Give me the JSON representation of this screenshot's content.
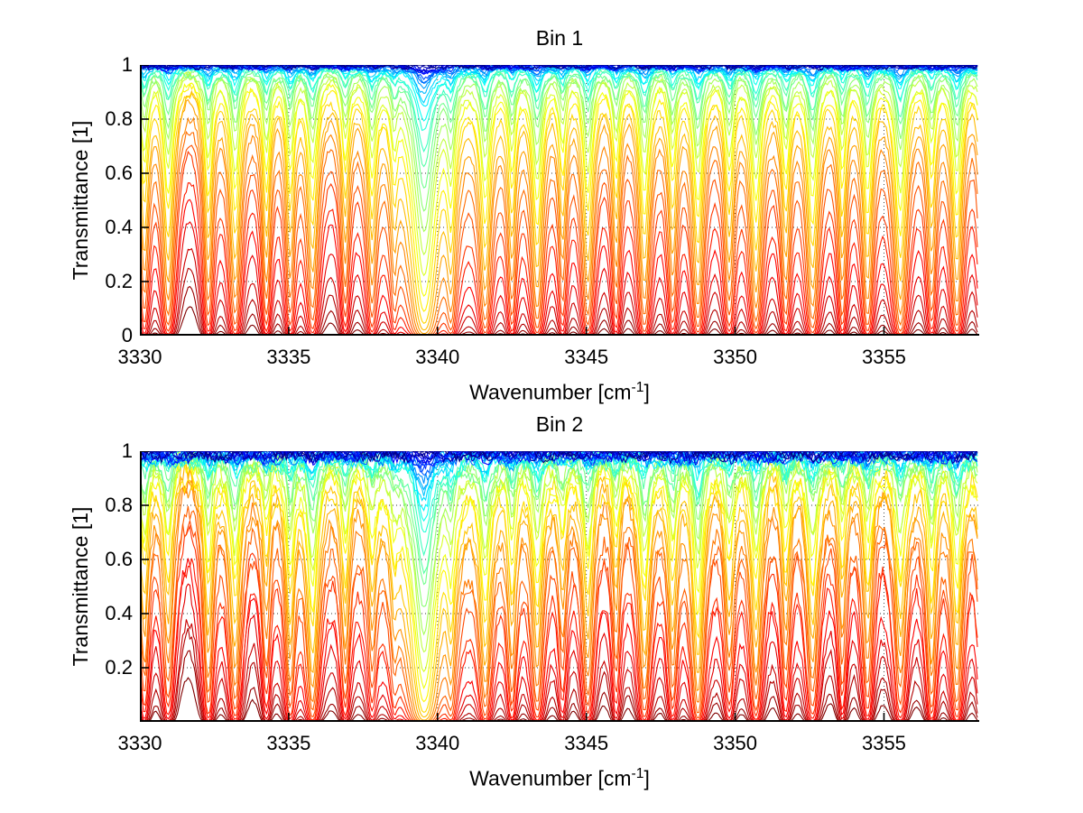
{
  "figure": {
    "background": "#ffffff",
    "colors": {
      "axis": "#000000",
      "grid": "#333333",
      "text": "#000000"
    }
  },
  "chart_data": [
    {
      "type": "line",
      "title": "Bin 1",
      "xlabel": {
        "prefix": "Wavenumber [cm",
        "sup": "-1",
        "suffix": "]"
      },
      "ylabel": "Transmittance [1]",
      "xlim": [
        3330,
        3358.2
      ],
      "ylim": [
        0,
        1
      ],
      "x_ticks": [
        3330,
        3335,
        3340,
        3345,
        3350,
        3355
      ],
      "x_tick_labels": [
        "3330",
        "3335",
        "3340",
        "3345",
        "3350",
        "3355"
      ],
      "y_ticks": [
        0,
        0.2,
        0.4,
        0.6,
        0.8,
        1
      ],
      "y_tick_labels": [
        "0",
        "0.2",
        "0.4",
        "0.6",
        "0.8",
        "1"
      ],
      "grid": "dotted",
      "legend": "none",
      "series_model": {
        "kind": "beer_lambert_transmittance_family",
        "n_curves": 40,
        "absorbance_scale_min": 0.001,
        "absorbance_scale_max": 9,
        "spacing": "log",
        "colormap": "jet",
        "top_curve_color": "#0000a0",
        "deepest_curve_color": "#800000",
        "noise": 0.012,
        "strength_jitter": 0.15,
        "noise_seed": 11
      },
      "line_format": [
        "wavenumber_cm-1",
        "strength",
        "half_width_cm-1"
      ],
      "absorption_lines": [
        [
          3330.15,
          1.6,
          0.14
        ],
        [
          3330.95,
          2.2,
          0.16
        ],
        [
          3332.3,
          1.7,
          0.14
        ],
        [
          3333.2,
          2.1,
          0.16
        ],
        [
          3334.25,
          1.5,
          0.13
        ],
        [
          3335.05,
          1.6,
          0.14
        ],
        [
          3335.8,
          2.2,
          0.16
        ],
        [
          3336.9,
          1.3,
          0.13
        ],
        [
          3337.8,
          1.6,
          0.14
        ],
        [
          3338.55,
          1.1,
          0.12
        ],
        [
          3339.55,
          7.0,
          0.3
        ],
        [
          3340.45,
          1.8,
          0.14
        ],
        [
          3341.6,
          2.4,
          0.16
        ],
        [
          3342.5,
          1.5,
          0.13
        ],
        [
          3343.35,
          2.3,
          0.16
        ],
        [
          3344.2,
          1.4,
          0.13
        ],
        [
          3345.05,
          2.4,
          0.16
        ],
        [
          3346.0,
          1.5,
          0.13
        ],
        [
          3346.95,
          2.3,
          0.16
        ],
        [
          3347.9,
          1.6,
          0.14
        ],
        [
          3348.75,
          2.3,
          0.16
        ],
        [
          3349.8,
          1.9,
          0.15
        ],
        [
          3350.7,
          2.4,
          0.16
        ],
        [
          3351.7,
          1.6,
          0.14
        ],
        [
          3352.6,
          2.5,
          0.17
        ],
        [
          3353.6,
          1.5,
          0.13
        ],
        [
          3354.45,
          2.0,
          0.15
        ],
        [
          3355.55,
          2.6,
          0.17
        ],
        [
          3356.6,
          1.6,
          0.14
        ],
        [
          3357.45,
          2.2,
          0.16
        ],
        [
          3358.35,
          1.6,
          0.14
        ]
      ]
    },
    {
      "type": "line",
      "title": "Bin 2",
      "xlabel": {
        "prefix": "Wavenumber [cm",
        "sup": "-1",
        "suffix": "]"
      },
      "ylabel": "Transmittance [1]",
      "xlim": [
        3330,
        3358.2
      ],
      "ylim": [
        0,
        1
      ],
      "x_ticks": [
        3330,
        3335,
        3340,
        3345,
        3350,
        3355
      ],
      "x_tick_labels": [
        "3330",
        "3335",
        "3340",
        "3345",
        "3350",
        "3355"
      ],
      "y_ticks": [
        0.2,
        0.4,
        0.6,
        0.8,
        1
      ],
      "y_tick_labels": [
        "0.2",
        "0.4",
        "0.6",
        "0.8",
        "1"
      ],
      "grid": "dotted",
      "legend": "none",
      "series_model": {
        "kind": "beer_lambert_transmittance_family",
        "n_curves": 42,
        "absorbance_scale_min": 0.001,
        "absorbance_scale_max": 8,
        "spacing": "log",
        "colormap": "jet",
        "top_curve_color": "#0000a0",
        "deepest_curve_color": "#800000",
        "noise": 0.03,
        "strength_jitter": 0.3,
        "noise_seed": 77
      },
      "line_format": [
        "wavenumber_cm-1",
        "strength",
        "half_width_cm-1"
      ],
      "absorption_lines": [
        [
          3330.15,
          1.6,
          0.14
        ],
        [
          3330.95,
          2.2,
          0.16
        ],
        [
          3332.3,
          1.7,
          0.14
        ],
        [
          3333.2,
          2.1,
          0.16
        ],
        [
          3334.25,
          1.5,
          0.13
        ],
        [
          3335.05,
          1.6,
          0.14
        ],
        [
          3335.8,
          2.2,
          0.16
        ],
        [
          3336.9,
          1.3,
          0.13
        ],
        [
          3337.8,
          1.6,
          0.14
        ],
        [
          3338.55,
          1.1,
          0.12
        ],
        [
          3339.55,
          7.0,
          0.3
        ],
        [
          3340.45,
          1.8,
          0.14
        ],
        [
          3341.6,
          2.4,
          0.16
        ],
        [
          3342.5,
          1.5,
          0.13
        ],
        [
          3343.35,
          2.3,
          0.16
        ],
        [
          3344.2,
          1.4,
          0.13
        ],
        [
          3345.05,
          2.4,
          0.16
        ],
        [
          3346.0,
          1.5,
          0.13
        ],
        [
          3346.95,
          2.3,
          0.16
        ],
        [
          3347.9,
          1.6,
          0.14
        ],
        [
          3348.75,
          2.3,
          0.16
        ],
        [
          3349.8,
          1.9,
          0.15
        ],
        [
          3350.7,
          2.4,
          0.16
        ],
        [
          3351.7,
          1.6,
          0.14
        ],
        [
          3352.6,
          2.5,
          0.17
        ],
        [
          3353.6,
          1.5,
          0.13
        ],
        [
          3354.45,
          2.0,
          0.15
        ],
        [
          3355.55,
          2.6,
          0.17
        ],
        [
          3356.6,
          1.6,
          0.14
        ],
        [
          3357.45,
          2.2,
          0.16
        ],
        [
          3358.35,
          1.6,
          0.14
        ]
      ]
    }
  ]
}
